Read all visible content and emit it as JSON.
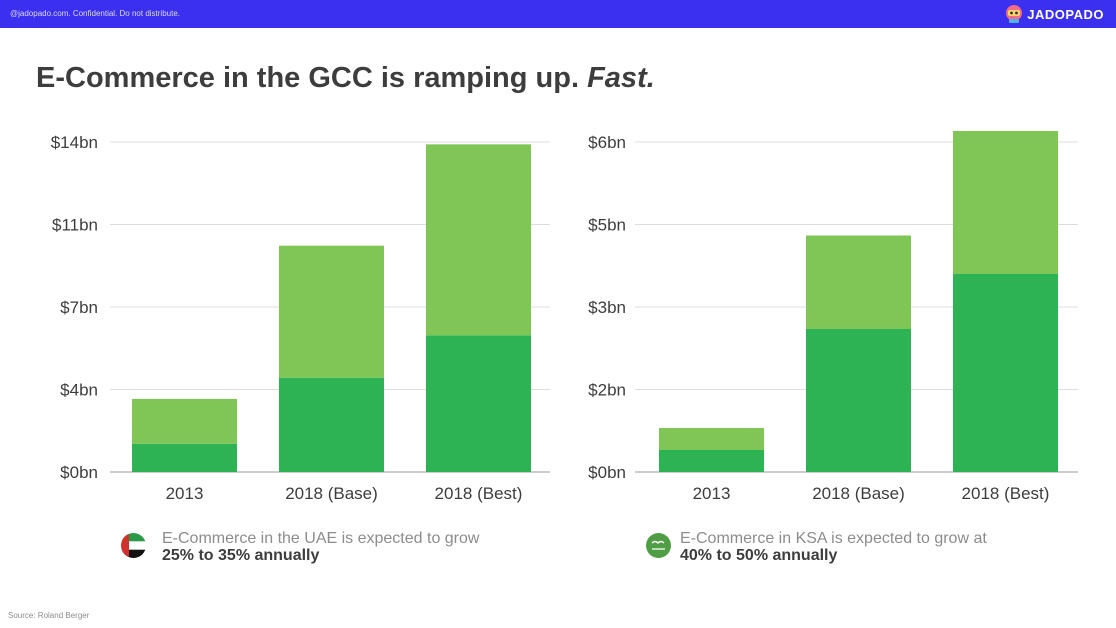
{
  "header": {
    "confidential": "@jadopado.com. Confidential. Do not distribute.",
    "brand": "JADOPADO",
    "brand_icon": "mascot-icon"
  },
  "title": {
    "main": "E-Commerce in the GCC is ramping up. ",
    "emphasis": "Fast."
  },
  "colors": {
    "dark_green": "#2db354",
    "light_green": "#7fc657",
    "header_blue": "#3b2ff0",
    "grid": "#dcdcdc"
  },
  "chart_data": [
    {
      "type": "bar",
      "stacked": true,
      "categories": [
        "2013",
        "2018 (Base)",
        "2018 (Best)"
      ],
      "series": [
        {
          "values": [
            1.2,
            4.0,
            5.8
          ]
        },
        {
          "values": [
            1.9,
            5.6,
            8.1
          ]
        }
      ],
      "ylim": [
        0,
        14
      ],
      "yticks": [
        0,
        3.5,
        7,
        10.5,
        14
      ],
      "ytick_labels": [
        "$0bn",
        "$4bn",
        "$7bn",
        "$11bn",
        "$14bn"
      ],
      "grid": true
    },
    {
      "type": "bar",
      "stacked": true,
      "categories": [
        "2013",
        "2018 (Base)",
        "2018 (Best)"
      ],
      "series": [
        {
          "values": [
            0.4,
            2.6,
            3.6
          ]
        },
        {
          "values": [
            0.4,
            1.7,
            2.6
          ]
        }
      ],
      "ylim": [
        0,
        6
      ],
      "yticks": [
        0,
        1.5,
        3,
        4.5,
        6
      ],
      "ytick_labels": [
        "$0bn",
        "$2bn",
        "$3bn",
        "$5bn",
        "$6bn"
      ],
      "grid": true
    }
  ],
  "notes": [
    {
      "text": "E-Commerce in the UAE is expected to grow",
      "emphasis": "25% to 35% annually",
      "icon": "uae-flag-icon"
    },
    {
      "text": "E-Commerce in KSA is expected to grow at",
      "emphasis": "40% to 50% annually",
      "icon": "ksa-flag-icon"
    }
  ],
  "source": "Source: Roland Berger"
}
